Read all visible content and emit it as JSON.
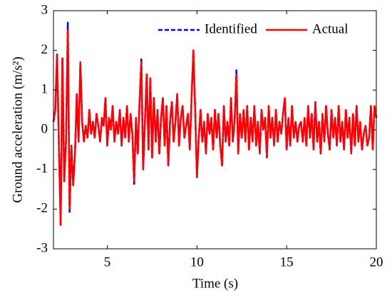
{
  "chart_data": {
    "type": "line",
    "x_label": "Time (s)",
    "y_label": "Ground acceleration (m/s²)",
    "x": [
      2,
      2.1,
      2.2,
      2.3,
      2.4,
      2.5,
      2.6,
      2.7,
      2.8,
      2.9,
      3,
      3.1,
      3.2,
      3.3,
      3.4,
      3.5,
      3.6,
      3.7,
      3.8,
      3.9,
      4,
      4.1,
      4.2,
      4.3,
      4.4,
      4.5,
      4.6,
      4.7,
      4.8,
      4.9,
      5,
      5.1,
      5.2,
      5.3,
      5.4,
      5.5,
      5.6,
      5.7,
      5.8,
      5.9,
      6,
      6.1,
      6.2,
      6.3,
      6.4,
      6.5,
      6.6,
      6.7,
      6.8,
      6.9,
      7,
      7.1,
      7.2,
      7.3,
      7.4,
      7.5,
      7.6,
      7.7,
      7.8,
      7.9,
      8,
      8.1,
      8.2,
      8.3,
      8.4,
      8.5,
      8.6,
      8.7,
      8.8,
      8.9,
      9,
      9.1,
      9.2,
      9.3,
      9.4,
      9.5,
      9.6,
      9.7,
      9.8,
      9.9,
      10,
      10.1,
      10.2,
      10.3,
      10.4,
      10.5,
      10.6,
      10.7,
      10.8,
      10.9,
      11,
      11.1,
      11.2,
      11.3,
      11.4,
      11.5,
      11.6,
      11.7,
      11.8,
      11.9,
      12,
      12.1,
      12.2,
      12.3,
      12.4,
      12.5,
      12.6,
      12.7,
      12.8,
      12.9,
      13,
      13.1,
      13.2,
      13.3,
      13.4,
      13.5,
      13.6,
      13.7,
      13.8,
      13.9,
      14,
      14.1,
      14.2,
      14.3,
      14.4,
      14.5,
      14.6,
      14.7,
      14.8,
      14.9,
      15,
      15.1,
      15.2,
      15.3,
      15.4,
      15.5,
      15.6,
      15.7,
      15.8,
      15.9,
      16,
      16.1,
      16.2,
      16.3,
      16.4,
      16.5,
      16.6,
      16.7,
      16.8,
      16.9,
      17,
      17.1,
      17.2,
      17.3,
      17.4,
      17.5,
      17.6,
      17.7,
      17.8,
      17.9,
      18,
      18.1,
      18.2,
      18.3,
      18.4,
      18.5,
      18.6,
      18.7,
      18.8,
      18.9,
      19,
      19.1,
      19.2,
      19.3,
      19.4,
      19.5,
      19.6,
      19.7,
      19.8,
      19.9,
      20
    ],
    "series": [
      {
        "name": "Identified",
        "color": "#0000ff",
        "dash": true,
        "values": [
          0.2,
          0.5,
          1.9,
          -0.3,
          -2.4,
          1.8,
          -1.3,
          -0.3,
          2.7,
          -2.1,
          -0.4,
          -1.4,
          -0.6,
          0.9,
          -0.3,
          1.7,
          0.2,
          -0.3,
          0.1,
          -0.2,
          0.5,
          -0.1,
          0.2,
          -0.2,
          0.4,
          0.1,
          -0.3,
          0.3,
          0.1,
          0.8,
          -0.4,
          0.3,
          0,
          0.6,
          -0.3,
          0.2,
          -0.1,
          0.5,
          -0.4,
          0.3,
          -0.2,
          0.6,
          -0.3,
          0.4,
          -0.1,
          -1.4,
          0.3,
          -0.6,
          0.7,
          1.8,
          -1,
          0.2,
          1.4,
          -0.5,
          1.3,
          -0.7,
          0.8,
          -0.3,
          0.5,
          -0.6,
          0.3,
          0.8,
          -0.4,
          0.6,
          -0.9,
          0.2,
          0.7,
          -0.3,
          0.2,
          0.9,
          -0.4,
          0.3,
          0.6,
          -0.2,
          0.1,
          0.4,
          -0.5,
          0.8,
          2,
          0.5,
          -1.2,
          -0.2,
          0.5,
          -0.3,
          0.2,
          -0.6,
          0.4,
          -0.1,
          0.3,
          -0.5,
          0.5,
          -0.2,
          0.4,
          -0.4,
          -0.9,
          0.6,
          -0.3,
          0.2,
          -0.4,
          0.8,
          -0.3,
          0.2,
          1.5,
          -0.6,
          0.4,
          -0.2,
          0.5,
          -0.3,
          0.6,
          -0.5,
          0.3,
          -0.3,
          0.6,
          -0.4,
          0.2,
          -0.6,
          0.5,
          0,
          0.3,
          -0.7,
          0.6,
          -0.2,
          0.3,
          -0.4,
          0.5,
          -0.3,
          0.2,
          -0.1,
          0.4,
          0.8,
          -0.5,
          0.3,
          -0.4,
          0.6,
          -0.2,
          0.2,
          -0.3,
          0.1,
          0.2,
          -0.3,
          0.3,
          -0.4,
          0.6,
          -0.2,
          0.4,
          -0.5,
          0.7,
          -0.3,
          0.2,
          -0.6,
          0.4,
          -0.3,
          0.6,
          -0.1,
          -0.5,
          0.5,
          -0.2,
          0.3,
          -0.4,
          0.6,
          -0.3,
          0.2,
          -0.5,
          0.5,
          -0.2,
          0.3,
          -0.6,
          0.4,
          -0.4,
          0.6,
          -0.3,
          0.2,
          -0.5,
          -0.1,
          0.1,
          -0.4,
          -0.2,
          0.6,
          -0.5,
          0.6,
          0.3
        ]
      },
      {
        "name": "Actual",
        "color": "#ff0000",
        "dash": false,
        "values": [
          0.2,
          0.5,
          1.9,
          -0.3,
          -2.4,
          1.8,
          -1.3,
          -0.3,
          2.5,
          -2,
          -0.4,
          -1.4,
          -0.6,
          0.9,
          -0.3,
          1.7,
          0.2,
          -0.3,
          0.1,
          -0.2,
          0.5,
          -0.1,
          0.2,
          -0.2,
          0.4,
          0.1,
          -0.3,
          0.3,
          0.1,
          0.8,
          -0.4,
          0.3,
          0,
          0.6,
          -0.3,
          0.2,
          -0.1,
          0.5,
          -0.4,
          0.3,
          -0.2,
          0.6,
          -0.3,
          0.4,
          -0.1,
          -1.3,
          0.3,
          -0.6,
          0.7,
          1.7,
          -1,
          0.2,
          1.4,
          -0.5,
          1.3,
          -0.7,
          0.8,
          -0.3,
          0.5,
          -0.6,
          0.3,
          0.8,
          -0.4,
          0.6,
          -0.9,
          0.2,
          0.7,
          -0.3,
          0.2,
          0.9,
          -0.4,
          0.3,
          0.6,
          -0.2,
          0.1,
          0.4,
          -0.5,
          0.8,
          2,
          0.5,
          -1.2,
          -0.2,
          0.5,
          -0.3,
          0.2,
          -0.6,
          0.4,
          -0.1,
          0.3,
          -0.5,
          0.5,
          -0.2,
          0.4,
          -0.4,
          -0.9,
          0.6,
          -0.3,
          0.2,
          -0.4,
          0.8,
          -0.3,
          0.2,
          1.4,
          -0.6,
          0.4,
          -0.2,
          0.5,
          -0.3,
          0.6,
          -0.5,
          0.3,
          -0.3,
          0.6,
          -0.4,
          0.2,
          -0.6,
          0.5,
          0,
          0.3,
          -0.7,
          0.6,
          -0.2,
          0.3,
          -0.4,
          0.5,
          -0.3,
          0.2,
          -0.1,
          0.4,
          0.8,
          -0.5,
          0.3,
          -0.4,
          0.6,
          -0.2,
          0.2,
          -0.3,
          0.1,
          0.2,
          -0.3,
          0.3,
          -0.4,
          0.6,
          -0.2,
          0.4,
          -0.5,
          0.7,
          -0.3,
          0.2,
          -0.6,
          0.4,
          -0.3,
          0.6,
          -0.1,
          -0.5,
          0.5,
          -0.2,
          0.3,
          -0.4,
          0.6,
          -0.3,
          0.2,
          -0.5,
          0.5,
          -0.2,
          0.3,
          -0.6,
          0.4,
          -0.4,
          0.6,
          -0.3,
          0.2,
          -0.5,
          -0.1,
          0.1,
          -0.4,
          -0.2,
          0.6,
          -0.5,
          0.6,
          0.3
        ]
      }
    ],
    "xlim": [
      2,
      20
    ],
    "xticks": [
      5,
      10,
      15,
      20
    ],
    "ylim": [
      -3,
      3
    ],
    "yticks": [
      -3,
      -2,
      -1,
      0,
      1,
      2,
      3
    ],
    "legend": "upper right"
  }
}
